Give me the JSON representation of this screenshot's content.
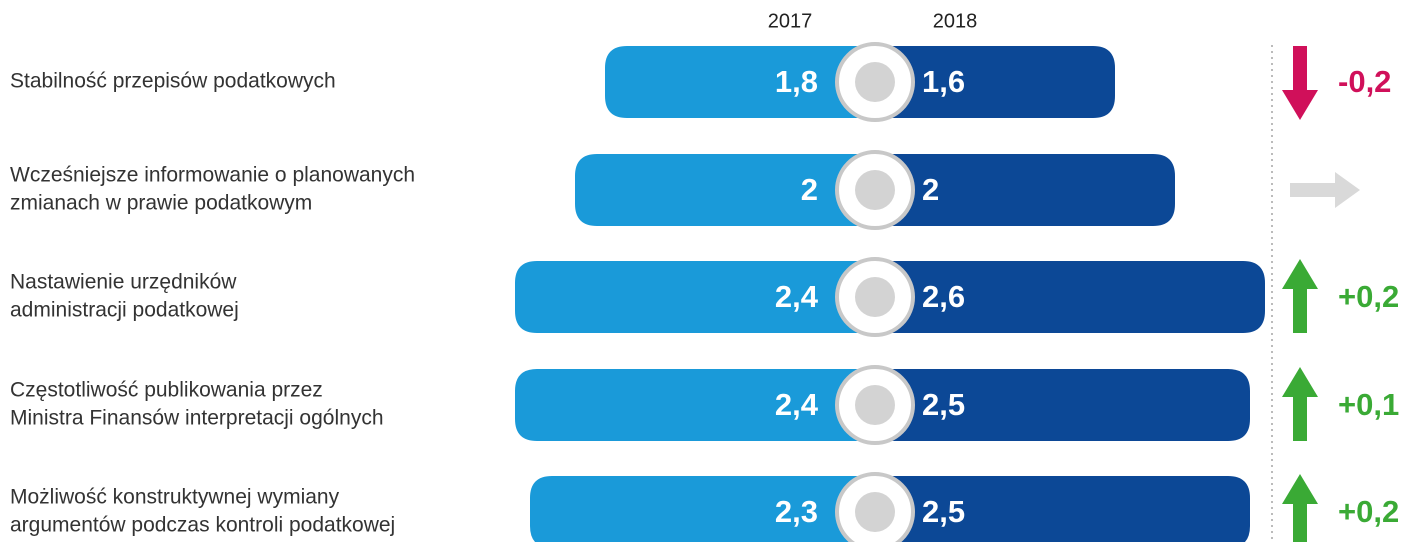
{
  "chart_data": {
    "type": "diverging_bar",
    "categories": [
      [
        "Stabilność przepisów podatkowych"
      ],
      [
        "Wcześniejsze informowanie o planowanych",
        "zmianach w prawie podatkowym"
      ],
      [
        "Nastawienie urzędników",
        "administracji podatkowej"
      ],
      [
        "Częstotliwość publikowania przez",
        "Ministra Finansów interpretacji ogólnych"
      ],
      [
        "Możliwość konstruktywnej wymiany",
        "argumentów podczas kontroli podatkowej"
      ]
    ],
    "series": [
      {
        "name": "2017",
        "color": "#1a9ad9",
        "values": [
          1.8,
          2,
          2.4,
          2.4,
          2.3
        ],
        "value_labels": [
          "1,8",
          "2",
          "2,4",
          "2,4",
          "2,3"
        ]
      },
      {
        "name": "2018",
        "color": "#0c4896",
        "values": [
          1.6,
          2,
          2.6,
          2.5,
          2.5
        ],
        "value_labels": [
          "1,6",
          "2",
          "2,6",
          "2,5",
          "2,5"
        ]
      }
    ],
    "change": {
      "values": [
        -0.2,
        0,
        0.2,
        0.1,
        0.2
      ],
      "value_labels": [
        "-0,2",
        null,
        "+0,2",
        "+0,1",
        "+0,2"
      ],
      "colors": {
        "up": "#3aaa35",
        "down": "#d0105a",
        "flat": "#d9d9d9"
      }
    }
  }
}
